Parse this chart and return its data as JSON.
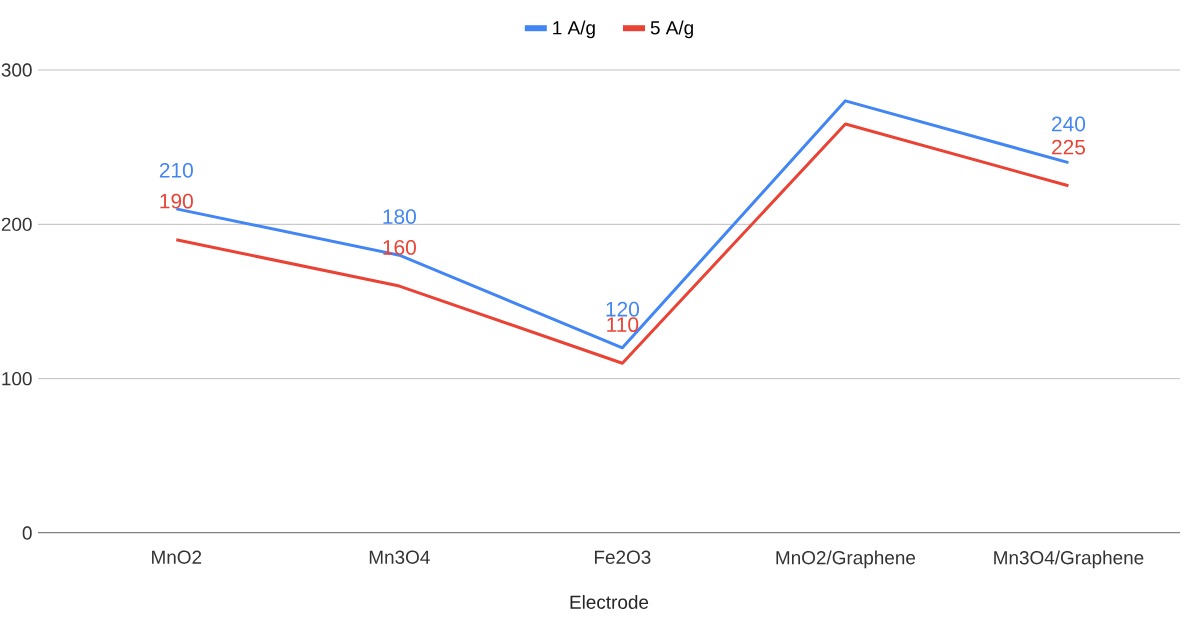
{
  "chart_data": {
    "type": "line",
    "xlabel": "Electrode",
    "categories": [
      "MnO2",
      "Mn3O4",
      "Fe2O3",
      "MnO2/Graphene",
      "Mn3O4/Graphene"
    ],
    "series": [
      {
        "name": "1 A/g",
        "color": "#4285f4",
        "values": [
          210,
          180,
          120,
          280,
          240
        ],
        "value_labels": [
          "210",
          "180",
          "120",
          null,
          "240"
        ]
      },
      {
        "name": "5 A/g",
        "color": "#ea4335",
        "values": [
          190,
          160,
          110,
          265,
          225
        ],
        "value_labels": [
          "190",
          "160",
          "110",
          null,
          "225"
        ]
      }
    ],
    "ylim": [
      0,
      300
    ],
    "yticks": [
      0,
      100,
      200,
      300
    ],
    "grid": "y",
    "legend": "top",
    "marker": "none",
    "line_style": "solid"
  }
}
